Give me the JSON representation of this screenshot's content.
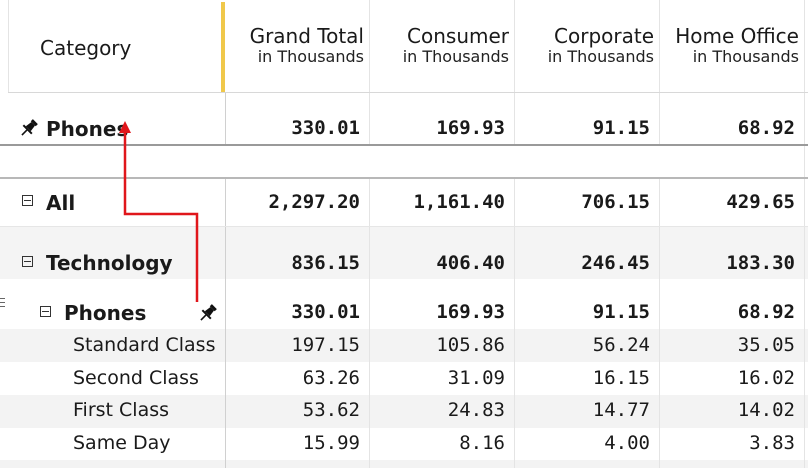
{
  "header": {
    "category_label": "Category",
    "columns": [
      {
        "title": "Grand Total",
        "sub": "in Thousands"
      },
      {
        "title": "Consumer",
        "sub": "in Thousands"
      },
      {
        "title": "Corporate",
        "sub": "in Thousands"
      },
      {
        "title": "Home Office",
        "sub": "in Thousands"
      }
    ]
  },
  "pinned": {
    "label": "Phones",
    "values": [
      "330.01",
      "169.93",
      "91.15",
      "68.92"
    ]
  },
  "rows": {
    "all": {
      "label": "All",
      "values": [
        "2,297.20",
        "1,161.40",
        "706.15",
        "429.65"
      ]
    },
    "technology": {
      "label": "Technology",
      "values": [
        "836.15",
        "406.40",
        "246.45",
        "183.30"
      ]
    },
    "phones": {
      "label": "Phones",
      "values": [
        "330.01",
        "169.93",
        "91.15",
        "68.92"
      ]
    },
    "children": [
      {
        "label": "Standard Class",
        "values": [
          "197.15",
          "105.86",
          "56.24",
          "35.05"
        ]
      },
      {
        "label": "Second Class",
        "values": [
          "63.26",
          "31.09",
          "16.15",
          "16.02"
        ]
      },
      {
        "label": "First Class",
        "values": [
          "53.62",
          "24.83",
          "14.77",
          "14.02"
        ]
      },
      {
        "label": "Same Day",
        "values": [
          "15.99",
          "8.16",
          "4.00",
          "3.83"
        ]
      }
    ]
  },
  "colors": {
    "accent_bar": "#f0c84a",
    "arrow": "#e0161b",
    "stripe": "#f3f3f3"
  },
  "icons": {
    "pin": "pin-icon",
    "collapse": "collapse-icon",
    "drag": "drag-handle-icon"
  }
}
